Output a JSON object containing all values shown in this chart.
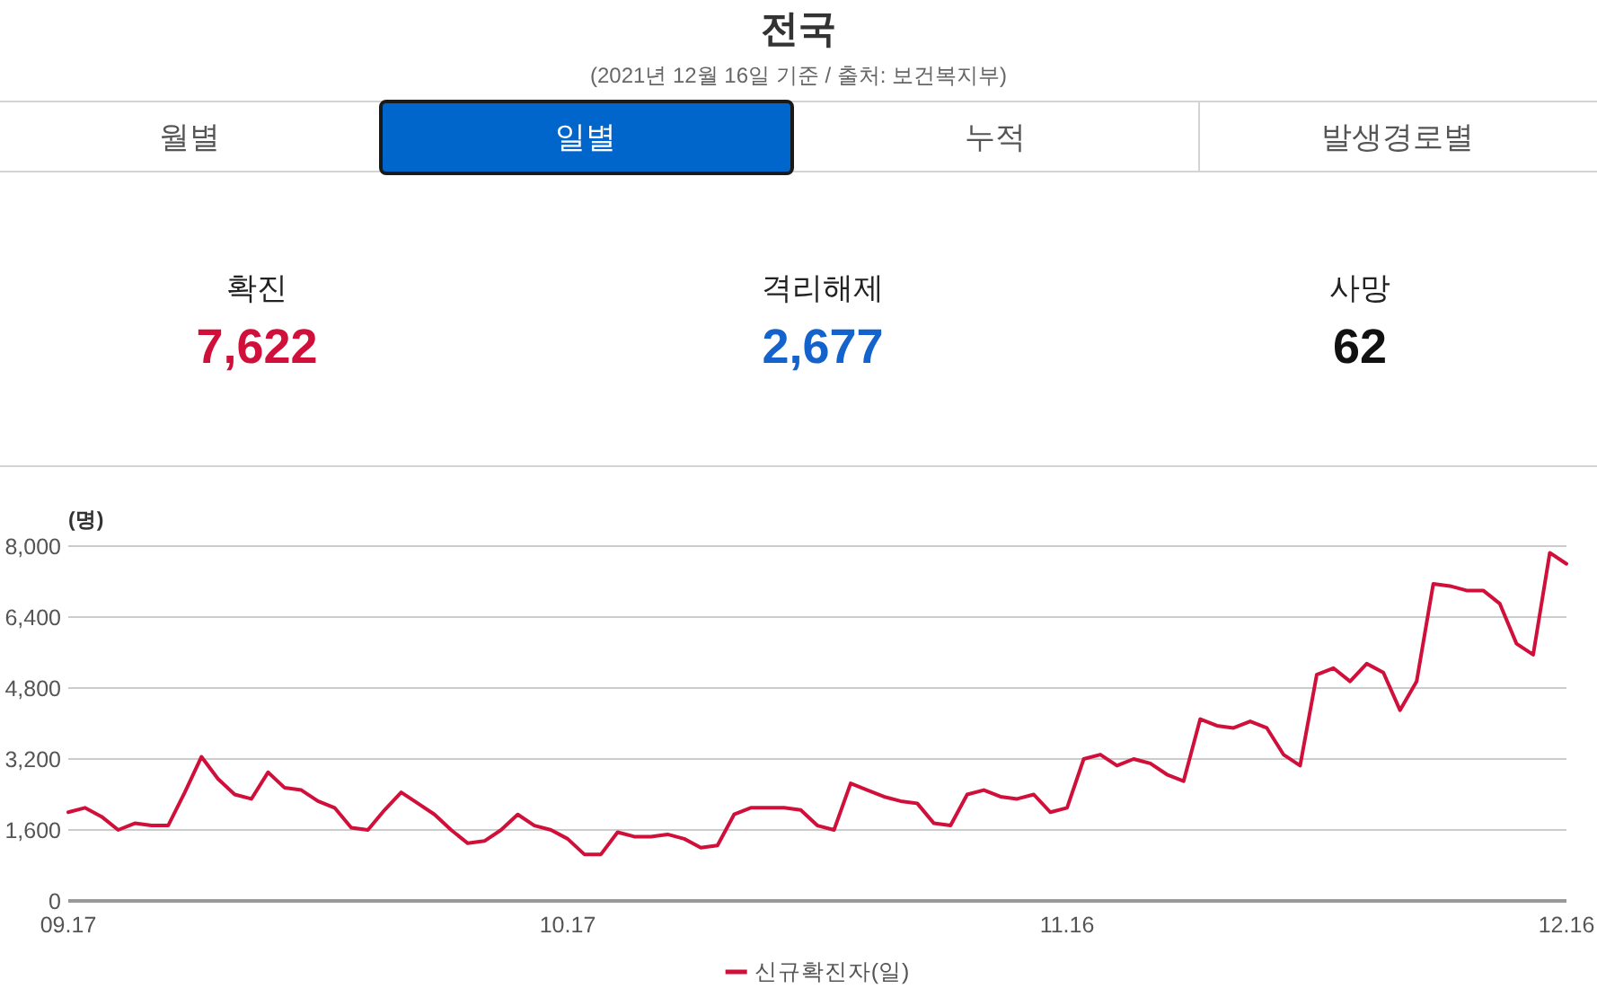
{
  "chart_data": [
    {
      "type": "other",
      "title": "전국",
      "subtitle": "(2021년 12월 16일 기준 / 출처: 보건복지부)",
      "annotations": [
        "월별",
        "일별",
        "누적",
        "발생경로별",
        "확진",
        "7,622",
        "격리해제",
        "2,677",
        "사망",
        "62"
      ]
    },
    {
      "type": "line",
      "ylabel": "(명)",
      "x": [
        "--09-17",
        "--09-18",
        "--09-19",
        "--09-20",
        "--09-21",
        "--09-22",
        "--09-23",
        "--09-24",
        "--09-25",
        "--09-26",
        "--09-27",
        "--09-28",
        "--09-29",
        "--09-30",
        "--10-01",
        "--10-02",
        "--10-03",
        "--10-04",
        "--10-05",
        "--10-06",
        "--10-07",
        "--10-08",
        "--10-09",
        "--10-10",
        "--10-11",
        "--10-12",
        "--10-13",
        "--10-14",
        "--10-15",
        "--10-16",
        "--10-17",
        "--10-18",
        "--10-19",
        "--10-20",
        "--10-21",
        "--10-22",
        "--10-23",
        "--10-24",
        "--10-25",
        "--10-26",
        "--10-27",
        "--10-28",
        "--10-29",
        "--10-30",
        "--10-31",
        "--11-01",
        "--11-02",
        "--11-03",
        "--11-04",
        "--11-05",
        "--11-06",
        "--11-07",
        "--11-08",
        "--11-09",
        "--11-10",
        "--11-11",
        "--11-12",
        "--11-13",
        "--11-14",
        "--11-15",
        "--11-16",
        "--11-17",
        "--11-18",
        "--11-19",
        "--11-20",
        "--11-21",
        "--11-22",
        "--11-23",
        "--11-24",
        "--11-25",
        "--11-26",
        "--11-27",
        "--11-28",
        "--11-29",
        "--11-30",
        "--12-01",
        "--12-02",
        "--12-03",
        "--12-04",
        "--12-05",
        "--12-06",
        "--12-07",
        "--12-08",
        "--12-09",
        "--12-10",
        "--12-11",
        "--12-12",
        "--12-13",
        "--12-14",
        "--12-15",
        "--12-16"
      ],
      "series": [
        {
          "name": "신규확진자(일)",
          "color": "#d0103a",
          "values": [
            2000,
            2100,
            1900,
            1600,
            1750,
            1700,
            1700,
            2450,
            3250,
            2750,
            2400,
            2300,
            2900,
            2550,
            2500,
            2250,
            2100,
            1650,
            1600,
            2050,
            2450,
            2200,
            1950,
            1600,
            1300,
            1350,
            1600,
            1950,
            1700,
            1600,
            1400,
            1050,
            1050,
            1550,
            1450,
            1450,
            1500,
            1400,
            1200,
            1250,
            1950,
            2100,
            2100,
            2100,
            2050,
            1700,
            1600,
            2650,
            2500,
            2350,
            2250,
            2200,
            1750,
            1700,
            2400,
            2500,
            2350,
            2300,
            2400,
            2000,
            2100,
            3200,
            3300,
            3050,
            3200,
            3100,
            2850,
            2700,
            4100,
            3950,
            3900,
            4050,
            3900,
            3300,
            3050,
            5100,
            5250,
            4950,
            5350,
            5150,
            4300,
            4950,
            7150,
            7100,
            7000,
            7000,
            6700,
            5800,
            5550,
            7850,
            7600
          ]
        }
      ],
      "xlim": [
        "--09-17",
        "--12-16"
      ],
      "xticks": [
        {
          "value": "--09-17",
          "label": "09.17"
        },
        {
          "value": "--10-17",
          "label": "10.17"
        },
        {
          "value": "--11-16",
          "label": "11.16"
        },
        {
          "value": "--12-16",
          "label": "12.16"
        }
      ],
      "ylim": [
        0,
        8000
      ],
      "yticks": [
        0,
        {
          "value": 1600,
          "label": "1,600"
        },
        {
          "value": 3200,
          "label": "3,200"
        },
        {
          "value": 4800,
          "label": "4,800"
        },
        {
          "value": 6400,
          "label": "6,400"
        },
        {
          "value": 8000,
          "label": "8,000"
        }
      ],
      "grid": "y",
      "legend": "bottom"
    }
  ]
}
